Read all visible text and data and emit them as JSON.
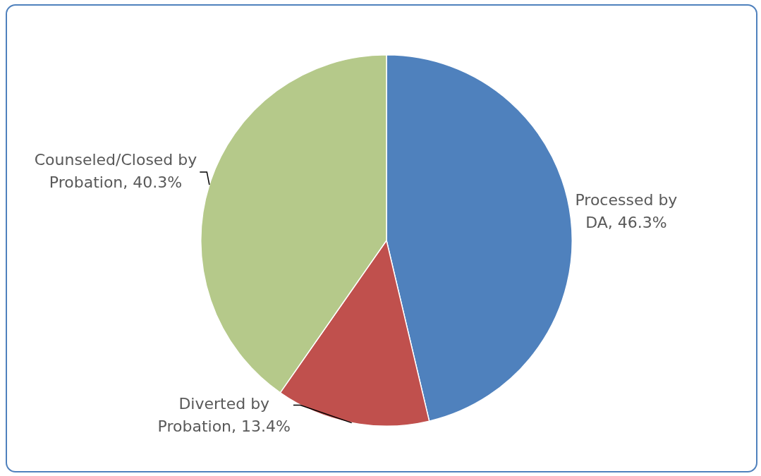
{
  "chart_data": {
    "type": "pie",
    "categories": [
      "Processed by DA",
      "Diverted by Probation",
      "Counseled/Closed by Probation"
    ],
    "values": [
      46.3,
      13.4,
      40.3
    ],
    "value_labels": [
      "46.3%",
      "13.4%",
      "40.3%"
    ],
    "colors": [
      "#4f81bd",
      "#c0504d",
      "#b5c98a"
    ],
    "legend": false
  }
}
